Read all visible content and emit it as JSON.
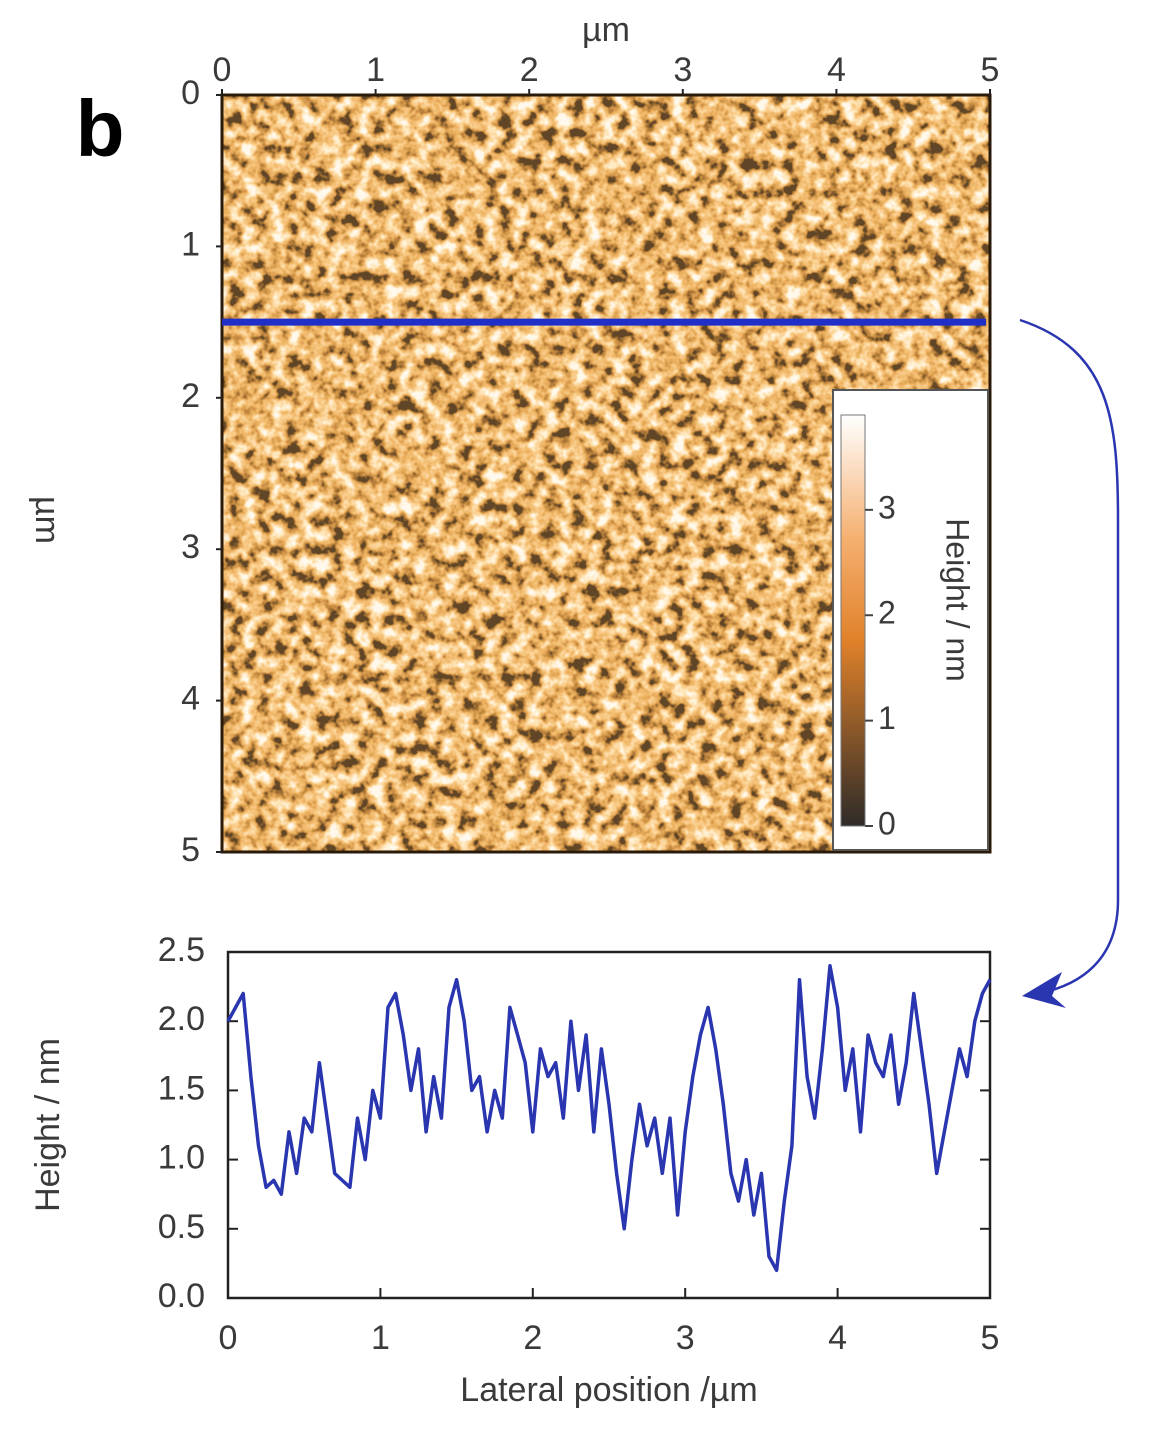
{
  "chart_data": [
    {
      "type": "heatmap",
      "panel_label": "b",
      "xlabel": "µm",
      "ylabel": "µm",
      "xlim": [
        0,
        5
      ],
      "ylim": [
        0,
        5
      ],
      "y_inverted": true,
      "xticks": [
        0,
        1,
        2,
        3,
        4,
        5
      ],
      "yticks": [
        0,
        1,
        2,
        3,
        4,
        5
      ],
      "profile_y": 1.5,
      "profile_color": "#1f2fc8",
      "colorbar": {
        "label": "Height / nm",
        "lim": [
          0,
          3.9
        ],
        "ticks": [
          0,
          1,
          2,
          3
        ]
      }
    },
    {
      "type": "line",
      "xlabel": "Lateral position /µm",
      "ylabel": "Height / nm",
      "color": "#2a35b0",
      "xlim": [
        0,
        5
      ],
      "ylim": [
        0,
        2.5
      ],
      "xticks": [
        0,
        1,
        2,
        3,
        4,
        5
      ],
      "yticks": [
        {
          "value": 0,
          "label": "0.0"
        },
        {
          "value": 0.5,
          "label": "0.5"
        },
        {
          "value": 1,
          "label": "1.0"
        },
        {
          "value": 1.5,
          "label": "1.5"
        },
        {
          "value": 2,
          "label": "2.0"
        },
        {
          "value": 2.5,
          "label": "2.5"
        }
      ],
      "x": [
        0,
        0.05,
        0.1,
        0.15,
        0.2,
        0.25,
        0.3,
        0.35,
        0.4,
        0.45,
        0.5,
        0.55,
        0.6,
        0.65,
        0.7,
        0.75,
        0.8,
        0.85,
        0.9,
        0.95,
        1,
        1.05,
        1.1,
        1.15,
        1.2,
        1.25,
        1.3,
        1.35,
        1.4,
        1.45,
        1.5,
        1.55,
        1.6,
        1.65,
        1.7,
        1.75,
        1.8,
        1.85,
        1.9,
        1.95,
        2,
        2.05,
        2.1,
        2.15,
        2.2,
        2.25,
        2.3,
        2.35,
        2.4,
        2.45,
        2.5,
        2.55,
        2.6,
        2.65,
        2.7,
        2.75,
        2.8,
        2.85,
        2.9,
        2.95,
        3,
        3.05,
        3.1,
        3.15,
        3.2,
        3.25,
        3.3,
        3.35,
        3.4,
        3.45,
        3.5,
        3.55,
        3.6,
        3.65,
        3.7,
        3.75,
        3.8,
        3.85,
        3.9,
        3.95,
        4,
        4.05,
        4.1,
        4.15,
        4.2,
        4.25,
        4.3,
        4.35,
        4.4,
        4.45,
        4.5,
        4.55,
        4.6,
        4.65,
        4.7,
        4.75,
        4.8,
        4.85,
        4.9,
        4.95,
        5
      ],
      "values": [
        2.0,
        2.1,
        2.2,
        1.6,
        1.1,
        0.8,
        0.85,
        0.75,
        1.2,
        0.9,
        1.3,
        1.2,
        1.7,
        1.3,
        0.9,
        0.85,
        0.8,
        1.3,
        1.0,
        1.5,
        1.3,
        2.1,
        2.2,
        1.9,
        1.5,
        1.8,
        1.2,
        1.6,
        1.3,
        2.1,
        2.3,
        2.0,
        1.5,
        1.6,
        1.2,
        1.5,
        1.3,
        2.1,
        1.9,
        1.7,
        1.2,
        1.8,
        1.6,
        1.7,
        1.3,
        2.0,
        1.5,
        1.9,
        1.2,
        1.8,
        1.4,
        0.9,
        0.5,
        1.0,
        1.4,
        1.1,
        1.3,
        0.9,
        1.3,
        0.6,
        1.2,
        1.6,
        1.9,
        2.1,
        1.8,
        1.4,
        0.9,
        0.7,
        1.0,
        0.6,
        0.9,
        0.3,
        0.2,
        0.7,
        1.1,
        2.3,
        1.6,
        1.3,
        1.8,
        2.4,
        2.1,
        1.5,
        1.8,
        1.2,
        1.9,
        1.7,
        1.6,
        1.9,
        1.4,
        1.7,
        2.2,
        1.8,
        1.4,
        0.9,
        1.2,
        1.5,
        1.8,
        1.6,
        2.0,
        2.2,
        2.3
      ]
    }
  ]
}
